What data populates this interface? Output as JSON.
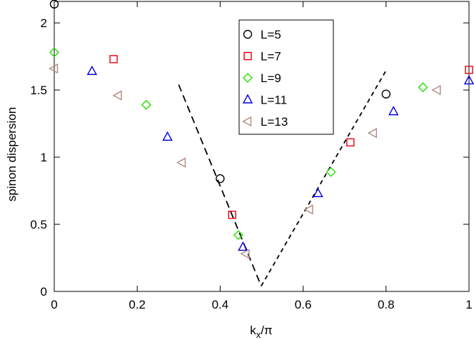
{
  "chart_data": {
    "type": "scatter",
    "xlabel": [
      "k",
      "x",
      "/π"
    ],
    "ylabel": "spinon dispersion",
    "xlim": [
      0,
      1
    ],
    "ylim": [
      0,
      2.16
    ],
    "xticks": [
      0,
      0.2,
      0.4,
      0.6,
      0.8,
      1
    ],
    "yticks": [
      0,
      0.5,
      1,
      1.5,
      2
    ],
    "legend": "upper center",
    "series": [
      {
        "name": "L=5",
        "color": "#000000",
        "marker": "circle",
        "x": [
          0,
          0.4,
          0.8
        ],
        "values": [
          2.14,
          0.84,
          1.47
        ]
      },
      {
        "name": "L=7",
        "color": "#e8000b",
        "marker": "square",
        "x": [
          0.143,
          0.429,
          0.714,
          1.0
        ],
        "values": [
          1.73,
          0.57,
          1.11,
          1.65
        ]
      },
      {
        "name": "L=9",
        "color": "#22e000",
        "marker": "diamond",
        "x": [
          0,
          0.222,
          0.444,
          0.667,
          0.889
        ],
        "values": [
          1.78,
          1.39,
          0.42,
          0.89,
          1.52
        ]
      },
      {
        "name": "L=11",
        "color": "#0000e0",
        "marker": "triangle-up",
        "x": [
          0.091,
          0.273,
          0.455,
          0.636,
          0.818,
          1.0
        ],
        "values": [
          1.64,
          1.15,
          0.33,
          0.73,
          1.34,
          1.57
        ]
      },
      {
        "name": "L=13",
        "color": "#b08a80",
        "marker": "triangle-left",
        "x": [
          0,
          0.154,
          0.308,
          0.462,
          0.615,
          0.769,
          0.923
        ],
        "values": [
          1.66,
          1.46,
          0.96,
          0.28,
          0.61,
          1.18,
          1.5
        ]
      }
    ],
    "lines": [
      {
        "color": "#000000",
        "dash": "long",
        "x": [
          0.3,
          0.499
        ],
        "values": [
          1.54,
          0.04
        ]
      },
      {
        "color": "#000000",
        "dash": "short",
        "x": [
          0.499,
          0.799
        ],
        "values": [
          0.04,
          1.64
        ]
      }
    ]
  }
}
